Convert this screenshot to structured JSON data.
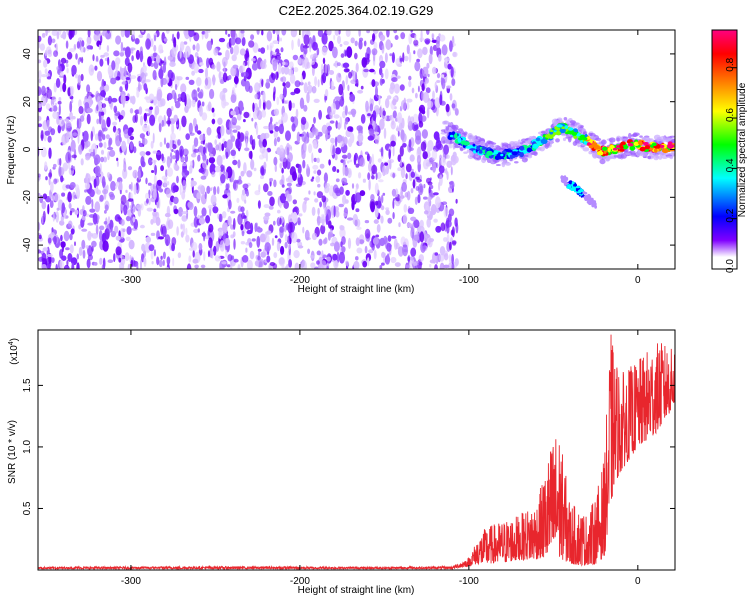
{
  "title": "C2E2.2025.364.02.19.G29",
  "chart_data": [
    {
      "type": "heatmap",
      "name": "spectrogram",
      "xlabel": "Height of straight line (km)",
      "ylabel": "Frequency (Hz)",
      "xlim": [
        -355,
        22
      ],
      "ylim": [
        -50,
        50
      ],
      "xticks": [
        -300,
        -200,
        -100,
        0
      ],
      "xtick_labels": [
        "-300",
        "-200",
        "-100",
        "0"
      ],
      "yticks": [
        -40,
        -20,
        0,
        20,
        40
      ],
      "ytick_labels": [
        "-40",
        "-20",
        "0",
        "20",
        "40"
      ],
      "noise_region_x": [
        -355,
        -107
      ],
      "signal_track": {
        "x": [
          -115,
          -105,
          -98,
          -90,
          -83,
          -77,
          -70,
          -63,
          -57,
          -50,
          -45,
          -40,
          -35,
          -30,
          -25,
          -20,
          -15,
          -10,
          -5,
          0,
          5,
          10,
          15,
          22
        ],
        "y": [
          8,
          4,
          1,
          -1,
          -2,
          -2,
          -1,
          1,
          4,
          7,
          9,
          8,
          6,
          4,
          1,
          -1,
          0,
          1,
          2,
          2,
          1,
          1,
          1,
          1
        ]
      },
      "secondary_track": {
        "x": [
          -45,
          -40,
          -35,
          -30,
          -25
        ],
        "y": [
          -12,
          -15,
          -17,
          -20,
          -23
        ]
      },
      "colorbar": {
        "label": "Normalized spectral amplitude",
        "range": [
          0.0,
          0.95
        ],
        "ticks": [
          0.0,
          0.2,
          0.4,
          0.6,
          0.8
        ],
        "tick_labels": [
          "0.0",
          "0.2",
          "0.4",
          "0.6",
          "0.8"
        ],
        "colors": [
          "#ffffff",
          "#8000ff",
          "#0000ff",
          "#00ffff",
          "#00ff00",
          "#ffff00",
          "#ff8000",
          "#ff0000",
          "#ff0080"
        ]
      }
    },
    {
      "type": "line",
      "name": "snr",
      "xlabel": "Height of straight line (km)",
      "ylabel": "SNR (10 * v/v)",
      "y_multiplier": "(x10",
      "y_multiplier_exp": "4",
      "y_multiplier_close": ")",
      "xlim": [
        -355,
        22
      ],
      "ylim": [
        0.0,
        1.95
      ],
      "xticks": [
        -300,
        -200,
        -100,
        0
      ],
      "xtick_labels": [
        "-300",
        "-200",
        "-100",
        "0"
      ],
      "yticks": [
        0.5,
        1.0,
        1.5
      ],
      "ytick_labels": [
        "0.5",
        "1.0",
        "1.5"
      ],
      "color": "#e8262d",
      "envelope": {
        "x": [
          -355,
          -250,
          -150,
          -110,
          -100,
          -95,
          -90,
          -80,
          -70,
          -60,
          -55,
          -50,
          -47,
          -44,
          -40,
          -35,
          -30,
          -25,
          -20,
          -18,
          -16,
          -14,
          -10,
          -5,
          0,
          5,
          10,
          15,
          20,
          22
        ],
        "low": [
          0.01,
          0.01,
          0.01,
          0.01,
          0.03,
          0.05,
          0.05,
          0.06,
          0.08,
          0.09,
          0.1,
          0.12,
          0.1,
          0.08,
          0.05,
          0.04,
          0.04,
          0.05,
          0.1,
          0.25,
          0.5,
          0.7,
          0.8,
          0.9,
          1.0,
          1.05,
          1.1,
          1.2,
          1.3,
          1.35
        ],
        "high": [
          0.025,
          0.03,
          0.025,
          0.03,
          0.1,
          0.25,
          0.35,
          0.4,
          0.45,
          0.55,
          0.8,
          1.1,
          1.15,
          0.9,
          0.55,
          0.5,
          0.45,
          0.6,
          0.9,
          1.4,
          1.95,
          1.75,
          1.6,
          1.65,
          1.7,
          1.78,
          1.85,
          1.85,
          1.8,
          1.82
        ]
      }
    }
  ]
}
